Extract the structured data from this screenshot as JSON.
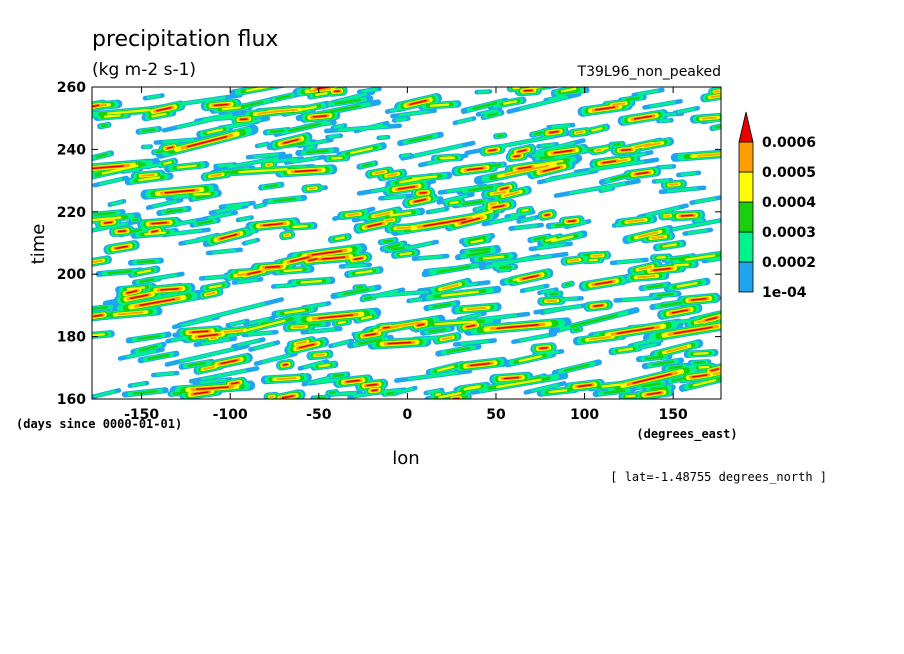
{
  "chart_data": {
    "type": "heatmap",
    "title": "precipitation flux",
    "units": "(kg m-2 s-1)",
    "run_label": "T39L96_non_peaked",
    "xlabel": "lon",
    "xunits": "(degrees_east)",
    "ylabel": "time",
    "yunits": "(days since 0000-01-01)",
    "annotation": "[ lat=-1.48755 degrees_north ]",
    "xlim": [
      -178,
      177
    ],
    "ylim": [
      160,
      260
    ],
    "xticks": [
      -150,
      -100,
      -50,
      0,
      50,
      100,
      150
    ],
    "xtick_labels": [
      "-150",
      "-100",
      "-50",
      "0",
      "50",
      "100",
      "150"
    ],
    "yticks": [
      160,
      180,
      200,
      220,
      240,
      260
    ],
    "ytick_labels": [
      "160",
      "180",
      "200",
      "220",
      "240",
      "260"
    ],
    "grid": false,
    "legend_placement": "right",
    "colorbar": {
      "levels": [
        0.0001,
        0.0002,
        0.0003,
        0.0004,
        0.0005,
        0.0006
      ],
      "level_labels": [
        "1e-04",
        "0.0002",
        "0.0003",
        "0.0004",
        "0.0005",
        "0.0006"
      ],
      "colors": [
        "#1ea5ef",
        "#00f28c",
        "#18d10c",
        "#ffff00",
        "#ff9e00",
        "#e80000"
      ],
      "extend": "max"
    },
    "field_pattern": "eastward-propagating streaks (Hovmoller), mostly below 1e-04 with scattered maxima above 0.0006"
  }
}
